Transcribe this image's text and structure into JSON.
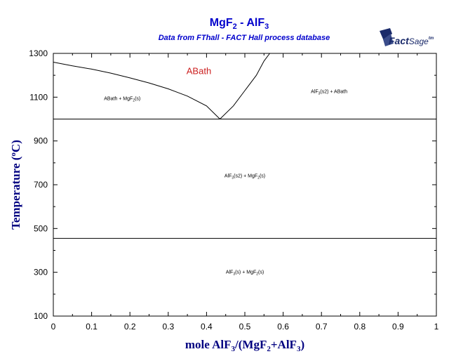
{
  "title_main": "MgF",
  "title_sub1": "2",
  "title_sep": " - AlF",
  "title_sub2": "3",
  "subtitle": "Data from FThall - FACT Hall process database",
  "logo": {
    "part1": "Fact",
    "part2": "Sage",
    "tm": "tm"
  },
  "ylabel": {
    "text": "Temperature (",
    "sup": "o",
    "unit": "C)"
  },
  "xlabel": {
    "p1": "mole AlF",
    "s1": "3",
    "p2": "/(MgF",
    "s2": "2",
    "p3": "+AlF",
    "s3": "3",
    "p4": ")"
  },
  "chart_data": {
    "type": "line",
    "title": "MgF2 - AlF3",
    "subtitle": "Data from FThall - FACT Hall process database",
    "xlabel": "mole AlF3/(MgF2+AlF3)",
    "ylabel": "Temperature (oC)",
    "xlim": [
      0,
      1
    ],
    "ylim": [
      100,
      1300
    ],
    "xticks": [
      "0",
      "0.1",
      "0.2",
      "0.3",
      "0.4",
      "0.5",
      "0.6",
      "0.7",
      "0.8",
      "0.9",
      "1"
    ],
    "yticks": [
      "100",
      "300",
      "500",
      "700",
      "900",
      "1100",
      "1300"
    ],
    "grid": false,
    "series": [
      {
        "id": "liquidus-mgf2",
        "points": [
          [
            0,
            1260
          ],
          [
            0.05,
            1243
          ],
          [
            0.1,
            1228
          ],
          [
            0.15,
            1210
          ],
          [
            0.2,
            1188
          ],
          [
            0.25,
            1165
          ],
          [
            0.3,
            1138
          ],
          [
            0.35,
            1105
          ],
          [
            0.4,
            1060
          ],
          [
            0.435,
            1000
          ]
        ]
      },
      {
        "id": "liquidus-alf3",
        "points": [
          [
            0.435,
            1000
          ],
          [
            0.47,
            1060
          ],
          [
            0.5,
            1130
          ],
          [
            0.53,
            1200
          ],
          [
            0.55,
            1265
          ],
          [
            0.565,
            1300
          ]
        ]
      },
      {
        "id": "eutectic-line",
        "points": [
          [
            0,
            1000
          ],
          [
            1,
            1000
          ]
        ]
      },
      {
        "id": "transition-line",
        "points": [
          [
            0,
            455
          ],
          [
            1,
            455
          ]
        ]
      }
    ],
    "annotations": [
      {
        "text": "ABath",
        "x": 0.38,
        "y": 1205,
        "style": "red"
      },
      {
        "text": "ABath + MgF",
        "sub": "2",
        "tail": "(s)",
        "x": 0.18,
        "y": 1087,
        "style": "small"
      },
      {
        "text": "AlF",
        "sub": "3",
        "tail": "(s2) + ABath",
        "x": 0.72,
        "y": 1118,
        "style": "small"
      },
      {
        "text": "AlF",
        "sub": "3",
        "tail": "(s2) + MgF",
        "sub2": "2",
        "tail2": "(s)",
        "x": 0.5,
        "y": 734,
        "style": "small"
      },
      {
        "text": "AlF",
        "sub": "3",
        "tail": "(s) + MgF",
        "sub2": "2",
        "tail2": "(s)",
        "x": 0.5,
        "y": 294,
        "style": "small"
      }
    ]
  }
}
